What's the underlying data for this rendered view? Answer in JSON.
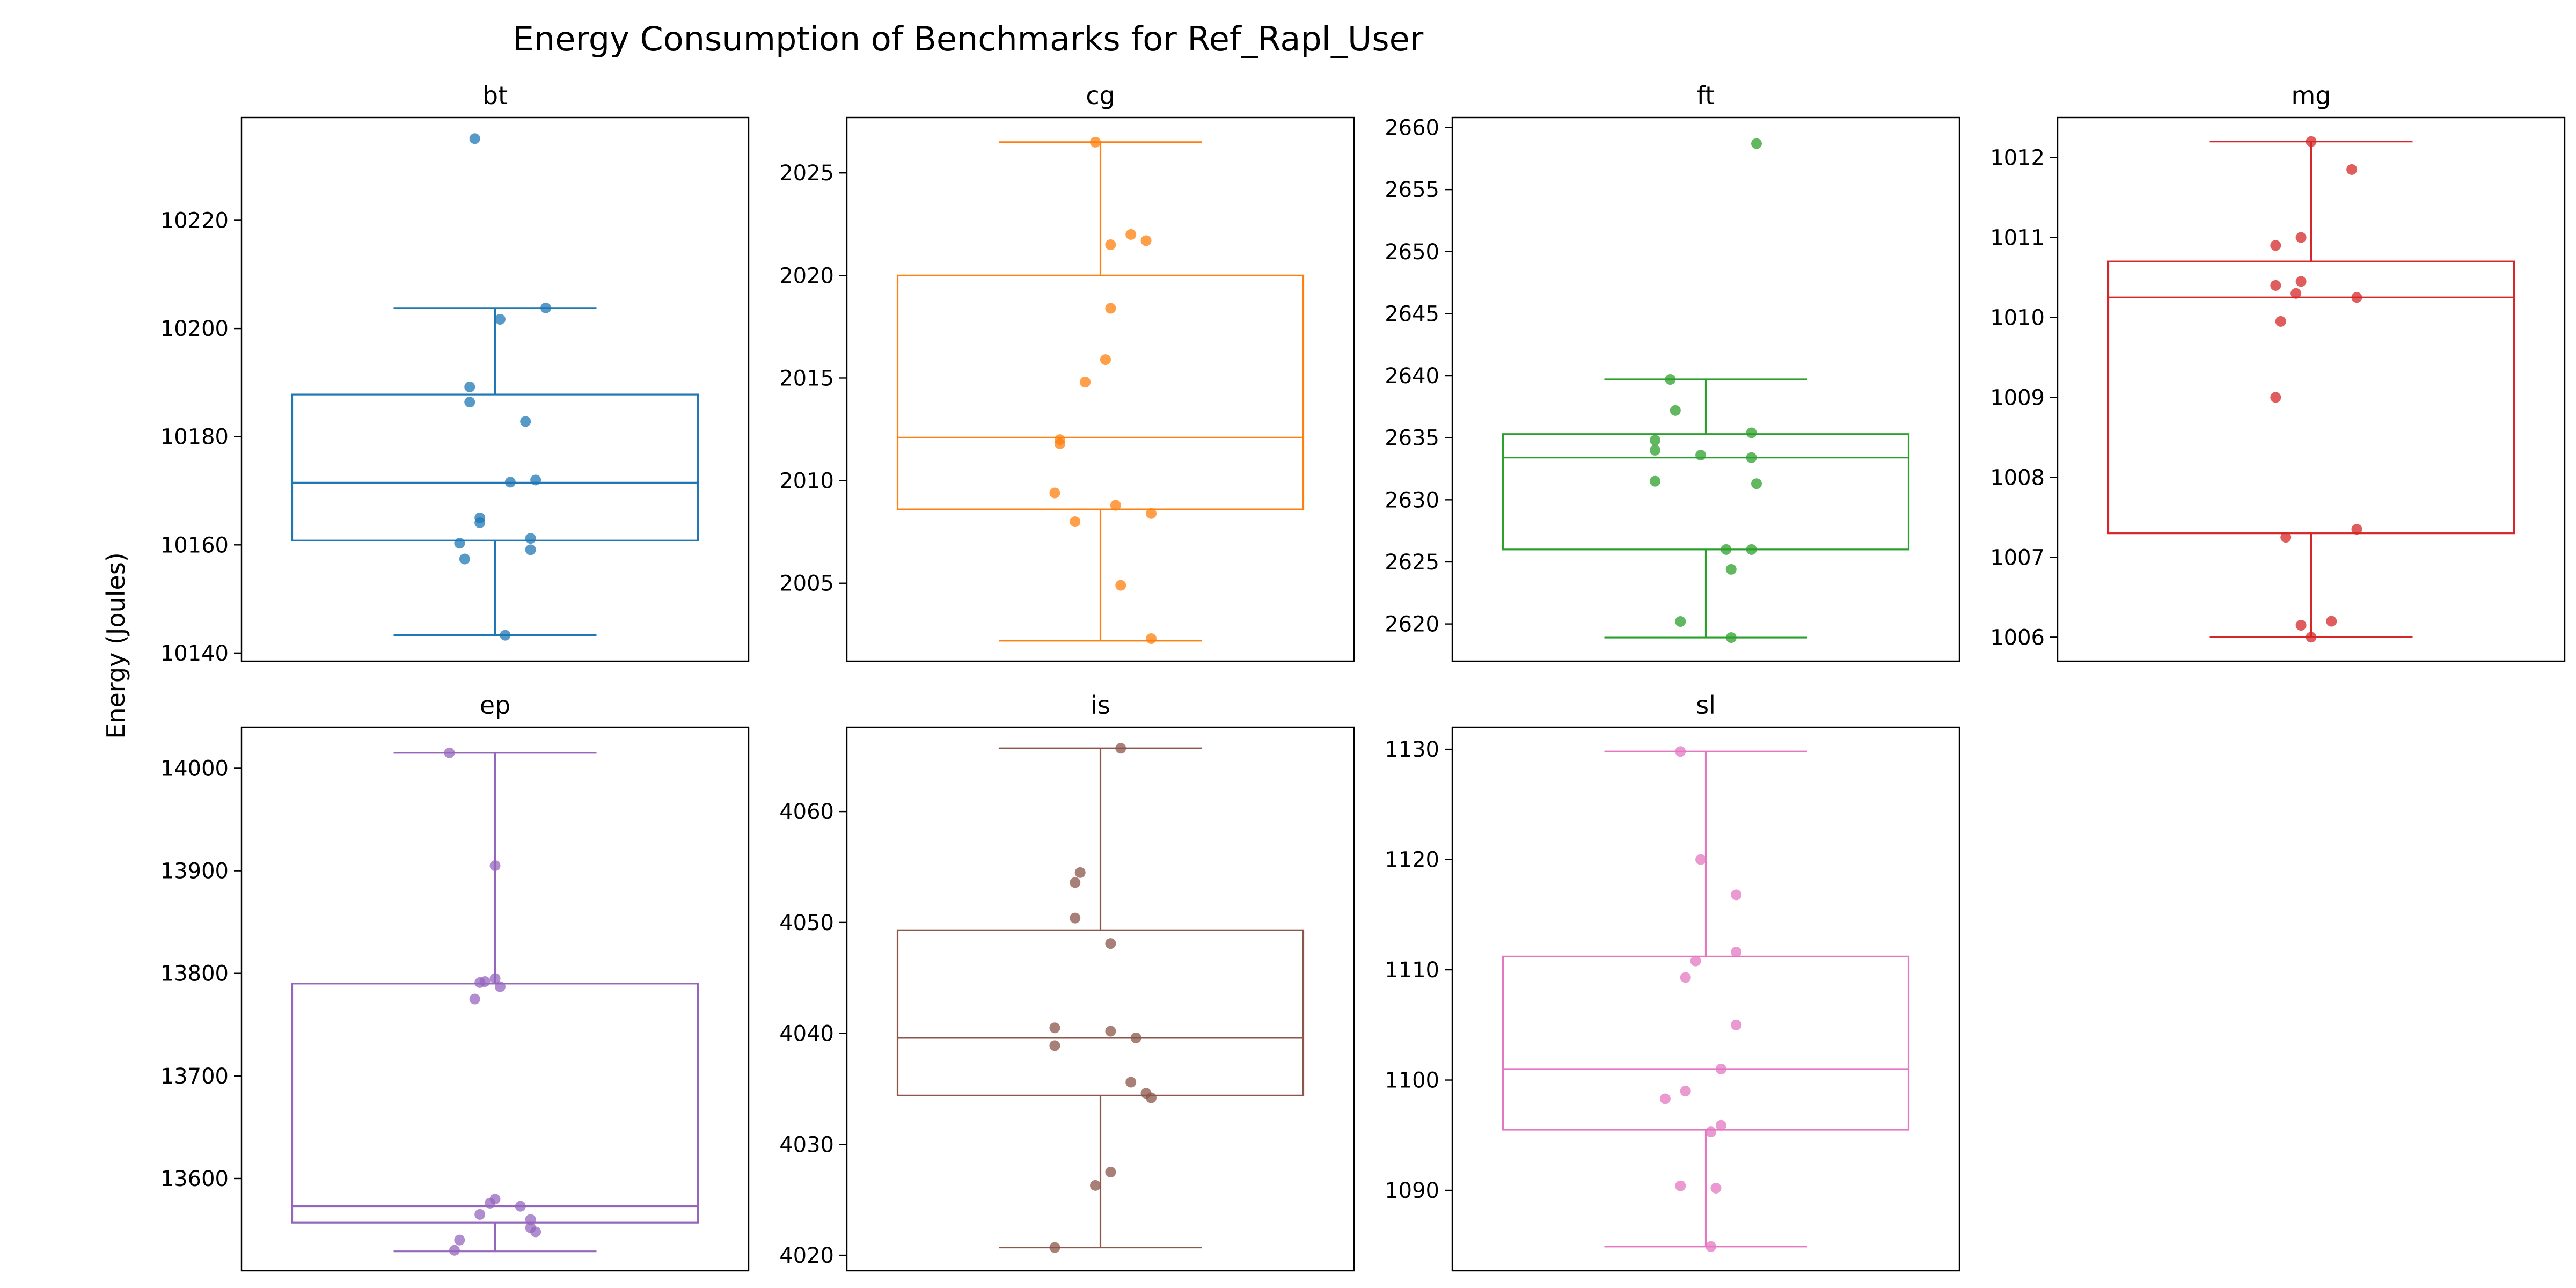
{
  "chart_data": {
    "title": "Energy Consumption of Benchmarks for Ref_Rapl_User",
    "ylabel": "Energy (Joules)",
    "type": "box",
    "grid": false,
    "panels": [
      {
        "name": "bt",
        "color": "#1f77b4",
        "ylim": [
          10138.5,
          10239.0
        ],
        "ticks": [
          10140,
          10160,
          10180,
          10200,
          10220
        ],
        "box": {
          "whislo": 10143.3,
          "q1": 10160.8,
          "median": 10171.5,
          "q3": 10187.8,
          "whishi": 10203.8
        },
        "points": [
          {
            "j": -0.04,
            "v": 10235.1
          },
          {
            "j": 0.1,
            "v": 10203.8
          },
          {
            "j": 0.01,
            "v": 10201.7
          },
          {
            "j": -0.05,
            "v": 10189.2
          },
          {
            "j": -0.05,
            "v": 10186.4
          },
          {
            "j": 0.06,
            "v": 10182.8
          },
          {
            "j": 0.08,
            "v": 10172.0
          },
          {
            "j": 0.03,
            "v": 10171.6
          },
          {
            "j": -0.03,
            "v": 10165.0
          },
          {
            "j": -0.03,
            "v": 10164.1
          },
          {
            "j": 0.07,
            "v": 10161.2
          },
          {
            "j": -0.07,
            "v": 10160.3
          },
          {
            "j": 0.07,
            "v": 10159.1
          },
          {
            "j": -0.06,
            "v": 10157.4
          },
          {
            "j": 0.02,
            "v": 10143.3
          }
        ]
      },
      {
        "name": "cg",
        "color": "#ff7f0e",
        "ylim": [
          2001.2,
          2027.7
        ],
        "ticks": [
          2005,
          2010,
          2015,
          2020,
          2025
        ],
        "box": {
          "whislo": 2002.2,
          "q1": 2008.6,
          "median": 2012.1,
          "q3": 2020.0,
          "whishi": 2026.5
        },
        "points": [
          {
            "j": -0.01,
            "v": 2026.5
          },
          {
            "j": 0.06,
            "v": 2022.0
          },
          {
            "j": 0.09,
            "v": 2021.7
          },
          {
            "j": 0.02,
            "v": 2021.5
          },
          {
            "j": 0.02,
            "v": 2018.4
          },
          {
            "j": 0.01,
            "v": 2015.9
          },
          {
            "j": -0.03,
            "v": 2014.8
          },
          {
            "j": -0.08,
            "v": 2012.0
          },
          {
            "j": -0.08,
            "v": 2011.8
          },
          {
            "j": -0.09,
            "v": 2009.4
          },
          {
            "j": 0.03,
            "v": 2008.8
          },
          {
            "j": 0.1,
            "v": 2008.4
          },
          {
            "j": -0.05,
            "v": 2008.0
          },
          {
            "j": 0.04,
            "v": 2004.9
          },
          {
            "j": 0.1,
            "v": 2002.3
          }
        ]
      },
      {
        "name": "ft",
        "color": "#2ca02c",
        "ylim": [
          2617.0,
          2660.8
        ],
        "ticks": [
          2620,
          2625,
          2630,
          2635,
          2640,
          2645,
          2650,
          2655,
          2660
        ],
        "box": {
          "whislo": 2618.9,
          "q1": 2626.0,
          "median": 2633.4,
          "q3": 2635.3,
          "whishi": 2639.7
        },
        "points": [
          {
            "j": 0.1,
            "v": 2658.7
          },
          {
            "j": -0.07,
            "v": 2639.7
          },
          {
            "j": -0.06,
            "v": 2637.2
          },
          {
            "j": 0.09,
            "v": 2635.4
          },
          {
            "j": -0.1,
            "v": 2634.8
          },
          {
            "j": -0.1,
            "v": 2634.0
          },
          {
            "j": -0.01,
            "v": 2633.6
          },
          {
            "j": 0.09,
            "v": 2633.4
          },
          {
            "j": -0.1,
            "v": 2631.5
          },
          {
            "j": 0.1,
            "v": 2631.3
          },
          {
            "j": 0.04,
            "v": 2626.0
          },
          {
            "j": 0.09,
            "v": 2626.0
          },
          {
            "j": 0.05,
            "v": 2624.4
          },
          {
            "j": -0.05,
            "v": 2620.2
          },
          {
            "j": 0.05,
            "v": 2618.9
          }
        ]
      },
      {
        "name": "mg",
        "color": "#d62728",
        "ylim": [
          1005.7,
          1012.5
        ],
        "ticks": [
          1006,
          1007,
          1008,
          1009,
          1010,
          1011,
          1012
        ],
        "box": {
          "whislo": 1006.0,
          "q1": 1007.3,
          "median": 1010.25,
          "q3": 1010.7,
          "whishi": 1012.2
        },
        "points": [
          {
            "j": 0.0,
            "v": 1012.2
          },
          {
            "j": 0.08,
            "v": 1011.85
          },
          {
            "j": -0.02,
            "v": 1011.0
          },
          {
            "j": -0.07,
            "v": 1010.9
          },
          {
            "j": -0.02,
            "v": 1010.45
          },
          {
            "j": -0.07,
            "v": 1010.4
          },
          {
            "j": -0.03,
            "v": 1010.3
          },
          {
            "j": 0.09,
            "v": 1010.25
          },
          {
            "j": -0.06,
            "v": 1009.95
          },
          {
            "j": -0.07,
            "v": 1009.0
          },
          {
            "j": 0.09,
            "v": 1007.35
          },
          {
            "j": -0.05,
            "v": 1007.25
          },
          {
            "j": 0.04,
            "v": 1006.2
          },
          {
            "j": -0.02,
            "v": 1006.15
          },
          {
            "j": 0.0,
            "v": 1006.0
          }
        ]
      },
      {
        "name": "ep",
        "color": "#9467bd",
        "ylim": [
          13510,
          14040
        ],
        "ticks": [
          13600,
          13700,
          13800,
          13900,
          14000
        ],
        "box": {
          "whislo": 13529.0,
          "q1": 13557.0,
          "median": 13573.0,
          "q3": 13790.0,
          "whishi": 14015.0
        },
        "points": [
          {
            "j": -0.09,
            "v": 14015.0
          },
          {
            "j": 0.0,
            "v": 13905.0
          },
          {
            "j": -0.02,
            "v": 13792.0
          },
          {
            "j": 0.0,
            "v": 13795.0
          },
          {
            "j": -0.03,
            "v": 13791.0
          },
          {
            "j": 0.01,
            "v": 13787.0
          },
          {
            "j": -0.04,
            "v": 13775.0
          },
          {
            "j": 0.0,
            "v": 13580.0
          },
          {
            "j": -0.01,
            "v": 13576.0
          },
          {
            "j": 0.05,
            "v": 13573.0
          },
          {
            "j": -0.03,
            "v": 13565.0
          },
          {
            "j": 0.07,
            "v": 13560.0
          },
          {
            "j": 0.07,
            "v": 13552.0
          },
          {
            "j": 0.08,
            "v": 13548.0
          },
          {
            "j": -0.07,
            "v": 13540.0
          },
          {
            "j": -0.08,
            "v": 13530.0
          }
        ]
      },
      {
        "name": "is",
        "color": "#8c564b",
        "ylim": [
          4018.6,
          4067.6
        ],
        "ticks": [
          4020,
          4030,
          4040,
          4050,
          4060
        ],
        "box": {
          "whislo": 4020.7,
          "q1": 4034.4,
          "median": 4039.6,
          "q3": 4049.3,
          "whishi": 4065.7
        },
        "points": [
          {
            "j": 0.04,
            "v": 4065.7
          },
          {
            "j": -0.04,
            "v": 4054.5
          },
          {
            "j": -0.05,
            "v": 4053.6
          },
          {
            "j": -0.05,
            "v": 4050.4
          },
          {
            "j": 0.02,
            "v": 4048.1
          },
          {
            "j": -0.09,
            "v": 4040.5
          },
          {
            "j": 0.02,
            "v": 4040.2
          },
          {
            "j": 0.07,
            "v": 4039.6
          },
          {
            "j": -0.09,
            "v": 4038.9
          },
          {
            "j": 0.06,
            "v": 4035.6
          },
          {
            "j": 0.09,
            "v": 4034.6
          },
          {
            "j": 0.1,
            "v": 4034.2
          },
          {
            "j": 0.02,
            "v": 4027.5
          },
          {
            "j": -0.01,
            "v": 4026.3
          },
          {
            "j": -0.09,
            "v": 4020.7
          }
        ]
      },
      {
        "name": "sl",
        "color": "#e377c2",
        "ylim": [
          1082.7,
          1132.0
        ],
        "ticks": [
          1090,
          1100,
          1110,
          1120,
          1130
        ],
        "box": {
          "whislo": 1084.9,
          "q1": 1095.5,
          "median": 1101.0,
          "q3": 1111.2,
          "whishi": 1129.8
        },
        "points": [
          {
            "j": -0.05,
            "v": 1129.8
          },
          {
            "j": -0.01,
            "v": 1120.0
          },
          {
            "j": 0.06,
            "v": 1116.8
          },
          {
            "j": 0.06,
            "v": 1111.6
          },
          {
            "j": -0.02,
            "v": 1110.8
          },
          {
            "j": -0.04,
            "v": 1109.3
          },
          {
            "j": 0.06,
            "v": 1105.0
          },
          {
            "j": 0.03,
            "v": 1101.0
          },
          {
            "j": -0.04,
            "v": 1099.0
          },
          {
            "j": -0.08,
            "v": 1098.3
          },
          {
            "j": 0.03,
            "v": 1095.9
          },
          {
            "j": 0.01,
            "v": 1095.3
          },
          {
            "j": -0.05,
            "v": 1090.4
          },
          {
            "j": 0.02,
            "v": 1090.2
          },
          {
            "j": 0.01,
            "v": 1084.9
          }
        ]
      }
    ]
  }
}
